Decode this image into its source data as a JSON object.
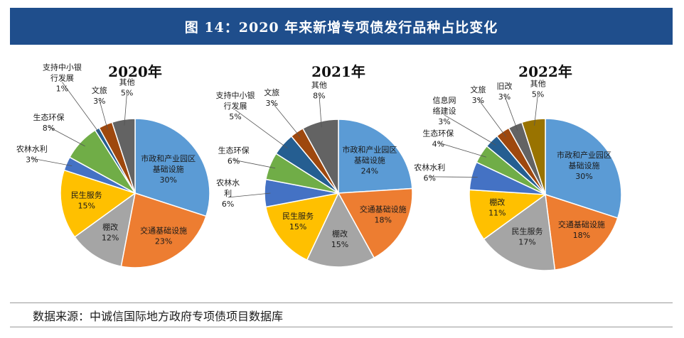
{
  "header": {
    "title": "图 14：2020 年来新增专项债发行品种占比变化"
  },
  "footer": {
    "source": "数据来源：中诚信国际地方政府专项债项目数据库"
  },
  "chart_data": [
    {
      "type": "pie",
      "title": "2020年",
      "slices": [
        {
          "label": "市政和产业园区基础设施",
          "lines": [
            "市政和产业园区",
            "基础设施"
          ],
          "value": 30,
          "pct": "30%",
          "color": "#5b9bd5"
        },
        {
          "label": "交通基础设施",
          "lines": [
            "交通基础设施"
          ],
          "value": 23,
          "pct": "23%",
          "color": "#ed7d31"
        },
        {
          "label": "棚改",
          "lines": [
            "棚改"
          ],
          "value": 12,
          "pct": "12%",
          "color": "#a5a5a5"
        },
        {
          "label": "民生服务",
          "lines": [
            "民生服务"
          ],
          "value": 15,
          "pct": "15%",
          "color": "#ffc000"
        },
        {
          "label": "农林水利",
          "lines": [
            "农林水利"
          ],
          "value": 3,
          "pct": "3%",
          "color": "#4472c4"
        },
        {
          "label": "生态环保",
          "lines": [
            "生态环保"
          ],
          "value": 8,
          "pct": "8%",
          "color": "#70ad47"
        },
        {
          "label": "支持中小银行发展",
          "lines": [
            "支持中小银",
            "行发展"
          ],
          "value": 1,
          "pct": "1%",
          "color": "#255e91"
        },
        {
          "label": "文旅",
          "lines": [
            "文旅"
          ],
          "value": 3,
          "pct": "3%",
          "color": "#9e480e"
        },
        {
          "label": "其他",
          "lines": [
            "其他"
          ],
          "value": 5,
          "pct": "5%",
          "color": "#636363"
        }
      ]
    },
    {
      "type": "pie",
      "title": "2021年",
      "slices": [
        {
          "label": "市政和产业园区基础设施",
          "lines": [
            "市政和产业园区",
            "基础设施"
          ],
          "value": 24,
          "pct": "24%",
          "color": "#5b9bd5"
        },
        {
          "label": "交通基础设施",
          "lines": [
            "交通基础设施"
          ],
          "value": 18,
          "pct": "18%",
          "color": "#ed7d31"
        },
        {
          "label": "棚改",
          "lines": [
            "棚改"
          ],
          "value": 15,
          "pct": "15%",
          "color": "#a5a5a5"
        },
        {
          "label": "民生服务",
          "lines": [
            "民生服务"
          ],
          "value": 15,
          "pct": "15%",
          "color": "#ffc000"
        },
        {
          "label": "农林水利",
          "lines": [
            "农林水",
            "利"
          ],
          "value": 6,
          "pct": "6%",
          "color": "#4472c4"
        },
        {
          "label": "生态环保",
          "lines": [
            "生态环保"
          ],
          "value": 6,
          "pct": "6%",
          "color": "#70ad47"
        },
        {
          "label": "支持中小银行发展",
          "lines": [
            "支持中小银",
            "行发展"
          ],
          "value": 5,
          "pct": "5%",
          "color": "#255e91"
        },
        {
          "label": "文旅",
          "lines": [
            "文旅"
          ],
          "value": 3,
          "pct": "3%",
          "color": "#9e480e"
        },
        {
          "label": "其他",
          "lines": [
            "其他"
          ],
          "value": 8,
          "pct": "8%",
          "color": "#636363"
        }
      ]
    },
    {
      "type": "pie",
      "title": "2022年",
      "slices": [
        {
          "label": "市政和产业园区基础设施",
          "lines": [
            "市政和产业园区",
            "基础设施"
          ],
          "value": 30,
          "pct": "30%",
          "color": "#5b9bd5"
        },
        {
          "label": "交通基础设施",
          "lines": [
            "交通基础设施"
          ],
          "value": 18,
          "pct": "18%",
          "color": "#ed7d31"
        },
        {
          "label": "民生服务",
          "lines": [
            "民生服务"
          ],
          "value": 17,
          "pct": "17%",
          "color": "#a5a5a5"
        },
        {
          "label": "棚改",
          "lines": [
            "棚改"
          ],
          "value": 11,
          "pct": "11%",
          "color": "#ffc000"
        },
        {
          "label": "农林水利",
          "lines": [
            "农林水利"
          ],
          "value": 6,
          "pct": "6%",
          "color": "#4472c4"
        },
        {
          "label": "生态环保",
          "lines": [
            "生态环保"
          ],
          "value": 4,
          "pct": "4%",
          "color": "#70ad47"
        },
        {
          "label": "信息网络建设",
          "lines": [
            "信息网",
            "络建设"
          ],
          "value": 3,
          "pct": "3%",
          "color": "#255e91"
        },
        {
          "label": "文旅",
          "lines": [
            "文旅"
          ],
          "value": 3,
          "pct": "3%",
          "color": "#9e480e"
        },
        {
          "label": "旧改",
          "lines": [
            "旧改"
          ],
          "value": 3,
          "pct": "3%",
          "color": "#636363"
        },
        {
          "label": "其他",
          "lines": [
            "其他"
          ],
          "value": 5,
          "pct": "5%",
          "color": "#997300"
        }
      ]
    }
  ]
}
